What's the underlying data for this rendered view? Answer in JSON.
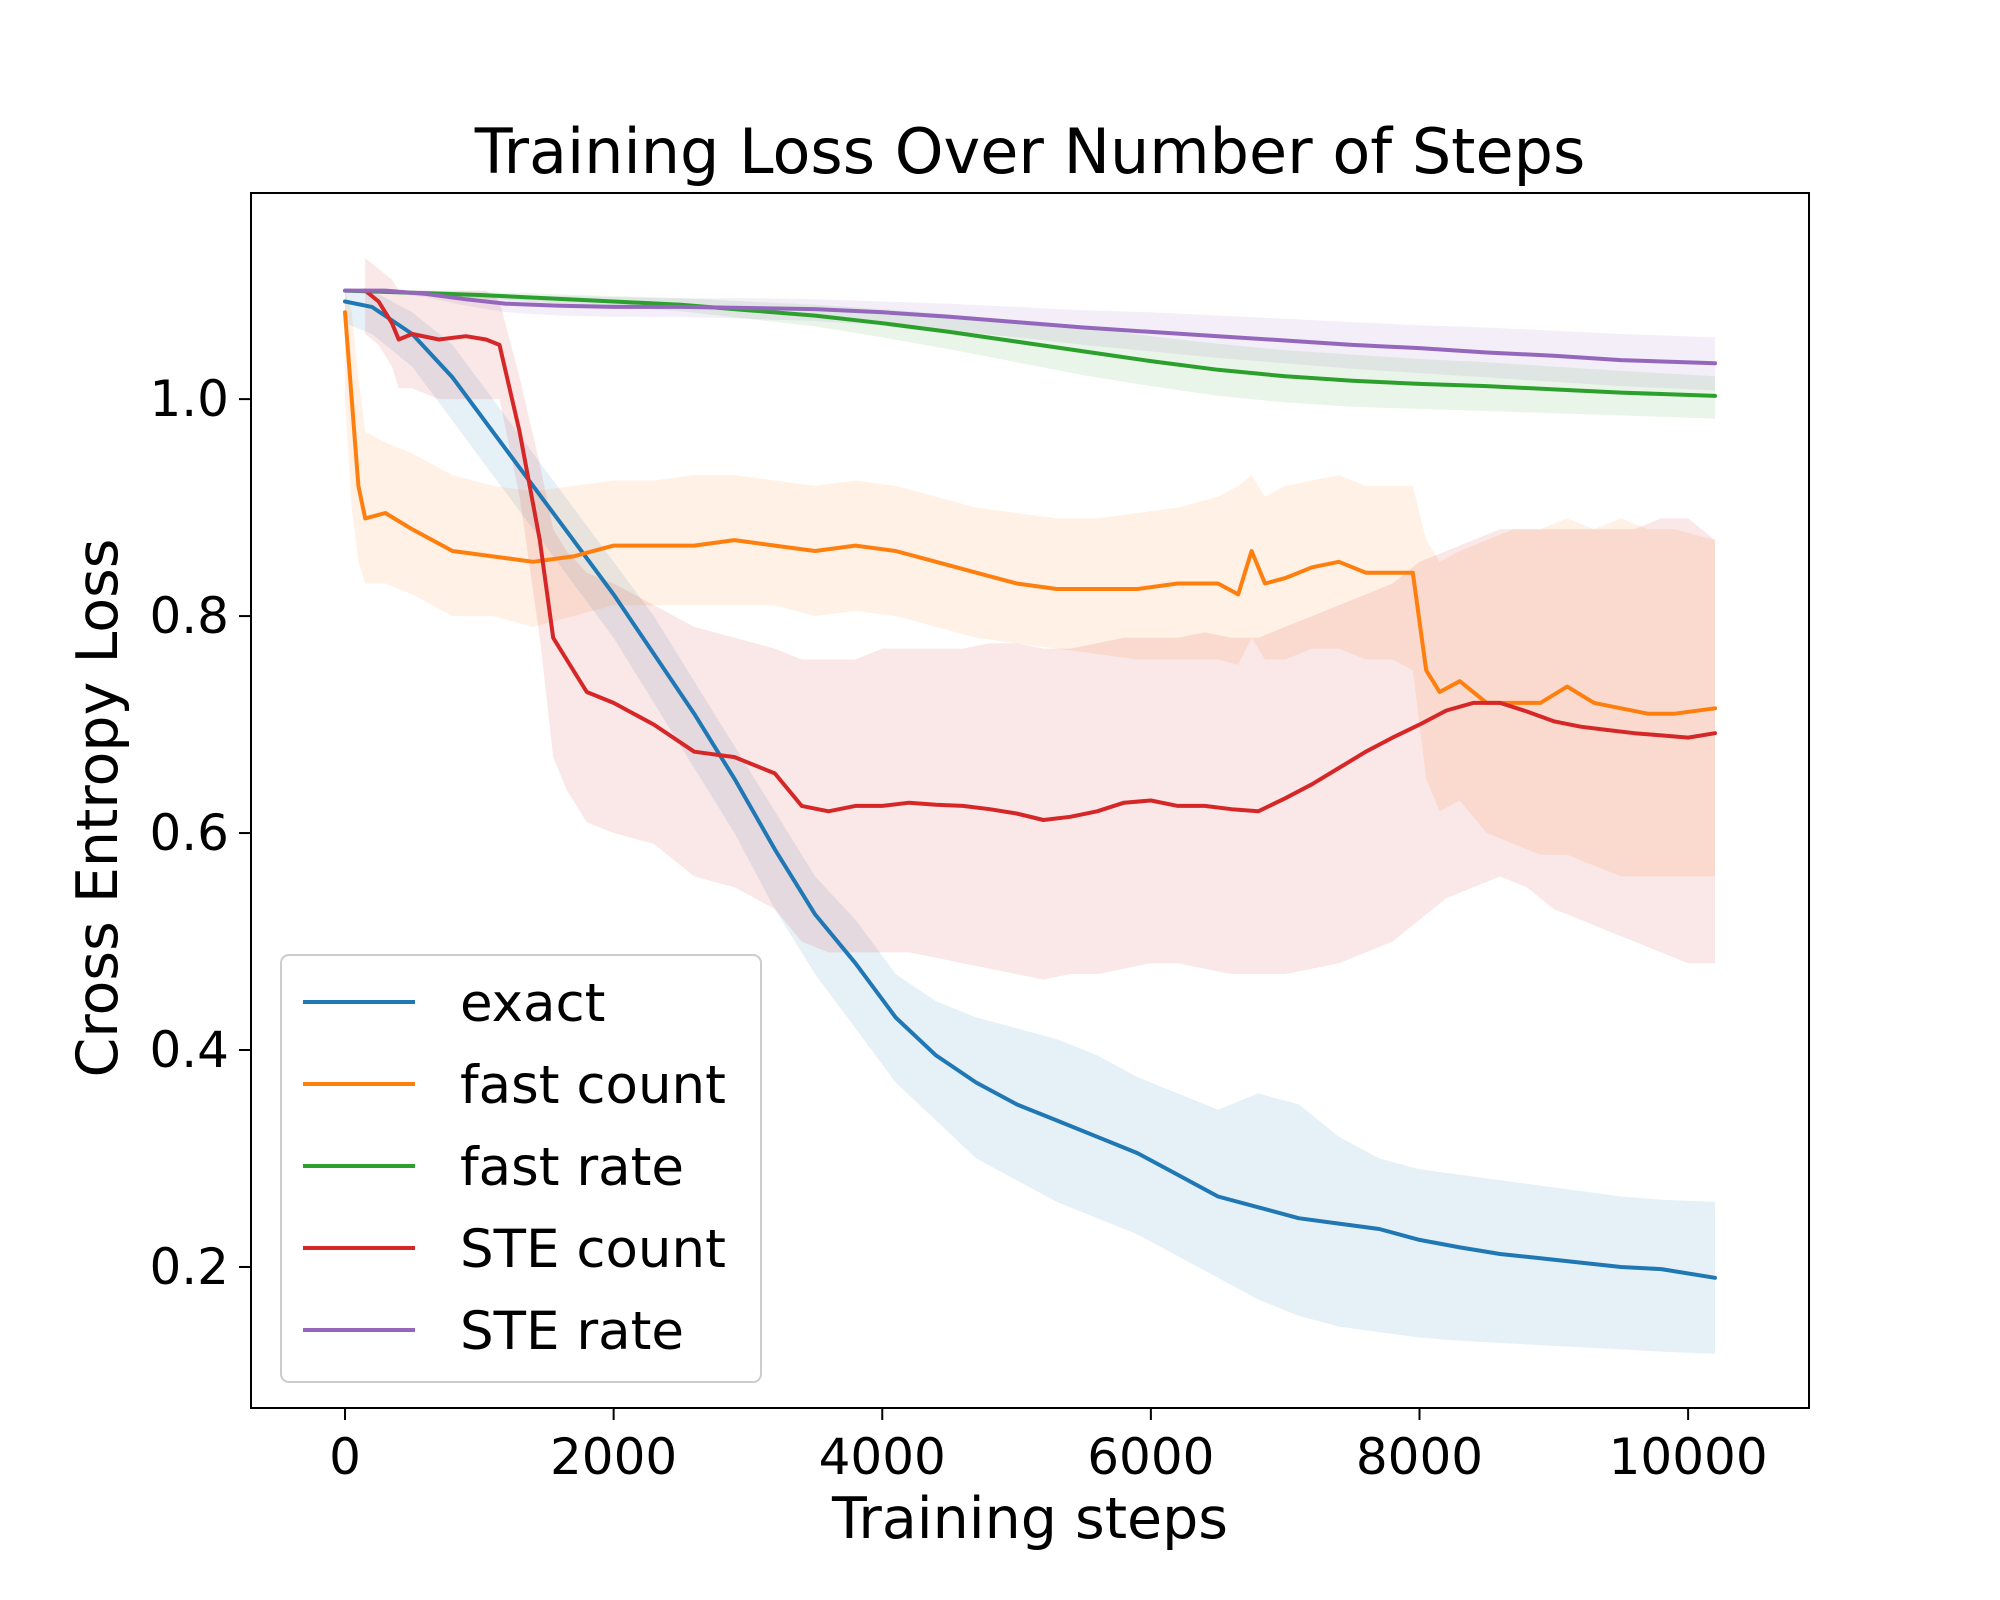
{
  "chart_data": {
    "type": "line",
    "title": "Training Loss Over Number of Steps",
    "xlabel": "Training steps",
    "ylabel": "Cross Entropy Loss",
    "xlim": [
      -700,
      10900
    ],
    "ylim": [
      0.07,
      1.19
    ],
    "xticks": [
      0,
      2000,
      4000,
      6000,
      8000,
      10000
    ],
    "yticks": [
      0.2,
      0.4,
      0.6,
      0.8,
      1.0
    ],
    "xtick_labels": [
      "0",
      "2000",
      "4000",
      "6000",
      "8000",
      "10000"
    ],
    "ytick_labels": [
      "0.2",
      "0.4",
      "0.6",
      "0.8",
      "1.0"
    ],
    "grid": false,
    "legend_position": "lower-left",
    "shaded_band": "min/max range across runs",
    "series": [
      {
        "name": "exact",
        "color": "#1f77b4",
        "x": [
          0,
          200,
          500,
          800,
          1100,
          1400,
          1700,
          2000,
          2300,
          2600,
          2900,
          3200,
          3500,
          3800,
          4100,
          4400,
          4700,
          5000,
          5300,
          5600,
          5900,
          6200,
          6500,
          6800,
          7100,
          7400,
          7700,
          8000,
          8300,
          8600,
          8900,
          9200,
          9500,
          9800,
          10200
        ],
        "y": [
          1.09,
          1.085,
          1.06,
          1.02,
          0.97,
          0.92,
          0.87,
          0.82,
          0.765,
          0.71,
          0.65,
          0.585,
          0.525,
          0.48,
          0.43,
          0.395,
          0.37,
          0.35,
          0.335,
          0.32,
          0.305,
          0.285,
          0.265,
          0.255,
          0.245,
          0.24,
          0.235,
          0.225,
          0.218,
          0.212,
          0.208,
          0.204,
          0.2,
          0.198,
          0.19
        ],
        "upper": [
          1.1,
          1.1,
          1.08,
          1.05,
          1.0,
          0.95,
          0.9,
          0.85,
          0.8,
          0.74,
          0.68,
          0.62,
          0.56,
          0.52,
          0.47,
          0.445,
          0.43,
          0.42,
          0.41,
          0.395,
          0.375,
          0.36,
          0.345,
          0.36,
          0.35,
          0.32,
          0.3,
          0.29,
          0.285,
          0.28,
          0.275,
          0.27,
          0.265,
          0.262,
          0.26
        ],
        "lower": [
          1.07,
          1.06,
          1.03,
          0.98,
          0.93,
          0.88,
          0.83,
          0.78,
          0.72,
          0.66,
          0.6,
          0.53,
          0.47,
          0.42,
          0.37,
          0.335,
          0.3,
          0.28,
          0.26,
          0.245,
          0.23,
          0.21,
          0.19,
          0.17,
          0.155,
          0.145,
          0.14,
          0.135,
          0.132,
          0.13,
          0.128,
          0.126,
          0.124,
          0.122,
          0.12
        ]
      },
      {
        "name": "fast count",
        "color": "#ff7f0e",
        "x": [
          0,
          50,
          100,
          150,
          300,
          500,
          800,
          1100,
          1400,
          1700,
          2000,
          2300,
          2600,
          2900,
          3200,
          3500,
          3800,
          4100,
          4400,
          4700,
          5000,
          5300,
          5600,
          5900,
          6200,
          6500,
          6650,
          6750,
          6850,
          7000,
          7200,
          7400,
          7600,
          7800,
          7950,
          8050,
          8150,
          8300,
          8500,
          8700,
          8900,
          9100,
          9300,
          9500,
          9700,
          9900,
          10200
        ],
        "y": [
          1.08,
          1.0,
          0.92,
          0.89,
          0.895,
          0.88,
          0.86,
          0.855,
          0.85,
          0.855,
          0.865,
          0.865,
          0.865,
          0.87,
          0.865,
          0.86,
          0.865,
          0.86,
          0.85,
          0.84,
          0.83,
          0.825,
          0.825,
          0.825,
          0.83,
          0.83,
          0.82,
          0.86,
          0.83,
          0.835,
          0.845,
          0.85,
          0.84,
          0.84,
          0.84,
          0.75,
          0.73,
          0.74,
          0.72,
          0.72,
          0.72,
          0.735,
          0.72,
          0.715,
          0.71,
          0.71,
          0.715
        ],
        "upper": [
          1.1,
          1.08,
          1.02,
          0.97,
          0.96,
          0.95,
          0.93,
          0.92,
          0.915,
          0.92,
          0.925,
          0.925,
          0.93,
          0.93,
          0.925,
          0.92,
          0.925,
          0.92,
          0.91,
          0.9,
          0.895,
          0.89,
          0.89,
          0.895,
          0.9,
          0.91,
          0.92,
          0.93,
          0.91,
          0.92,
          0.925,
          0.93,
          0.92,
          0.92,
          0.92,
          0.87,
          0.85,
          0.86,
          0.87,
          0.88,
          0.88,
          0.89,
          0.88,
          0.89,
          0.88,
          0.88,
          0.87
        ],
        "lower": [
          1.0,
          0.9,
          0.85,
          0.83,
          0.83,
          0.82,
          0.8,
          0.8,
          0.79,
          0.8,
          0.81,
          0.81,
          0.81,
          0.81,
          0.81,
          0.8,
          0.805,
          0.8,
          0.79,
          0.78,
          0.775,
          0.77,
          0.765,
          0.76,
          0.76,
          0.76,
          0.755,
          0.78,
          0.76,
          0.76,
          0.77,
          0.77,
          0.76,
          0.76,
          0.75,
          0.65,
          0.62,
          0.63,
          0.6,
          0.59,
          0.58,
          0.58,
          0.57,
          0.56,
          0.56,
          0.56,
          0.56
        ]
      },
      {
        "name": "fast rate",
        "color": "#2ca02c",
        "x": [
          0,
          500,
          1000,
          1500,
          2000,
          2500,
          3000,
          3500,
          4000,
          4500,
          5000,
          5500,
          6000,
          6500,
          7000,
          7500,
          8000,
          8500,
          9000,
          9500,
          10200
        ],
        "y": [
          1.1,
          1.098,
          1.096,
          1.093,
          1.09,
          1.087,
          1.082,
          1.077,
          1.07,
          1.062,
          1.053,
          1.044,
          1.035,
          1.027,
          1.021,
          1.017,
          1.014,
          1.012,
          1.009,
          1.006,
          1.003
        ],
        "upper": [
          1.1,
          1.1,
          1.099,
          1.097,
          1.095,
          1.093,
          1.09,
          1.087,
          1.083,
          1.078,
          1.072,
          1.066,
          1.058,
          1.051,
          1.045,
          1.041,
          1.037,
          1.034,
          1.03,
          1.026,
          1.021
        ],
        "lower": [
          1.1,
          1.096,
          1.093,
          1.089,
          1.085,
          1.081,
          1.074,
          1.067,
          1.057,
          1.046,
          1.034,
          1.022,
          1.012,
          1.003,
          0.997,
          0.993,
          0.991,
          0.989,
          0.987,
          0.985,
          0.982
        ]
      },
      {
        "name": "STE count",
        "color": "#d62728",
        "x": [
          150,
          250,
          350,
          400,
          500,
          700,
          900,
          1050,
          1150,
          1300,
          1450,
          1550,
          1650,
          1800,
          2000,
          2300,
          2600,
          2900,
          3200,
          3400,
          3600,
          3800,
          4000,
          4200,
          4400,
          4600,
          4800,
          5000,
          5200,
          5400,
          5600,
          5800,
          6000,
          6200,
          6400,
          6600,
          6800,
          7000,
          7200,
          7400,
          7600,
          7800,
          8000,
          8200,
          8400,
          8600,
          8800,
          9000,
          9200,
          9400,
          9600,
          9800,
          10000,
          10200
        ],
        "y": [
          1.1,
          1.09,
          1.07,
          1.055,
          1.06,
          1.055,
          1.058,
          1.055,
          1.05,
          0.97,
          0.87,
          0.78,
          0.76,
          0.73,
          0.72,
          0.7,
          0.675,
          0.67,
          0.655,
          0.625,
          0.62,
          0.625,
          0.625,
          0.628,
          0.626,
          0.625,
          0.622,
          0.618,
          0.612,
          0.615,
          0.62,
          0.628,
          0.63,
          0.625,
          0.625,
          0.622,
          0.62,
          0.632,
          0.645,
          0.66,
          0.675,
          0.688,
          0.7,
          0.713,
          0.72,
          0.72,
          0.712,
          0.703,
          0.698,
          0.695,
          0.692,
          0.69,
          0.688,
          0.692
        ],
        "upper": [
          1.13,
          1.12,
          1.11,
          1.1,
          1.1,
          1.1,
          1.1,
          1.1,
          1.09,
          1.02,
          0.94,
          0.88,
          0.86,
          0.84,
          0.83,
          0.81,
          0.79,
          0.78,
          0.77,
          0.76,
          0.76,
          0.76,
          0.77,
          0.77,
          0.77,
          0.77,
          0.775,
          0.775,
          0.77,
          0.77,
          0.775,
          0.78,
          0.78,
          0.78,
          0.785,
          0.78,
          0.78,
          0.79,
          0.8,
          0.81,
          0.82,
          0.83,
          0.85,
          0.86,
          0.87,
          0.88,
          0.88,
          0.88,
          0.88,
          0.88,
          0.88,
          0.89,
          0.89,
          0.87
        ],
        "lower": [
          1.06,
          1.05,
          1.03,
          1.01,
          1.01,
          1.0,
          1.0,
          1.0,
          1.0,
          0.91,
          0.78,
          0.67,
          0.64,
          0.61,
          0.6,
          0.59,
          0.56,
          0.55,
          0.53,
          0.5,
          0.49,
          0.49,
          0.49,
          0.49,
          0.485,
          0.48,
          0.475,
          0.47,
          0.465,
          0.47,
          0.47,
          0.475,
          0.48,
          0.48,
          0.475,
          0.47,
          0.47,
          0.47,
          0.475,
          0.48,
          0.49,
          0.5,
          0.52,
          0.54,
          0.55,
          0.56,
          0.55,
          0.53,
          0.52,
          0.51,
          0.5,
          0.49,
          0.48,
          0.48
        ]
      },
      {
        "name": "STE rate",
        "color": "#9467bd",
        "x": [
          0,
          300,
          600,
          900,
          1200,
          1600,
          2000,
          2500,
          3000,
          3500,
          4000,
          4500,
          5000,
          5500,
          6000,
          6500,
          7000,
          7500,
          8000,
          8500,
          9000,
          9500,
          10200
        ],
        "y": [
          1.1,
          1.1,
          1.097,
          1.092,
          1.088,
          1.086,
          1.085,
          1.085,
          1.084,
          1.083,
          1.08,
          1.076,
          1.071,
          1.066,
          1.062,
          1.058,
          1.054,
          1.05,
          1.047,
          1.043,
          1.04,
          1.036,
          1.033
        ],
        "upper": [
          1.1,
          1.1,
          1.1,
          1.098,
          1.096,
          1.095,
          1.094,
          1.093,
          1.093,
          1.092,
          1.09,
          1.088,
          1.085,
          1.082,
          1.08,
          1.077,
          1.074,
          1.071,
          1.068,
          1.066,
          1.063,
          1.06,
          1.057
        ],
        "lower": [
          1.1,
          1.098,
          1.094,
          1.086,
          1.08,
          1.077,
          1.076,
          1.076,
          1.074,
          1.072,
          1.068,
          1.063,
          1.057,
          1.05,
          1.044,
          1.038,
          1.033,
          1.028,
          1.024,
          1.02,
          1.016,
          1.012,
          1.008
        ]
      }
    ]
  }
}
